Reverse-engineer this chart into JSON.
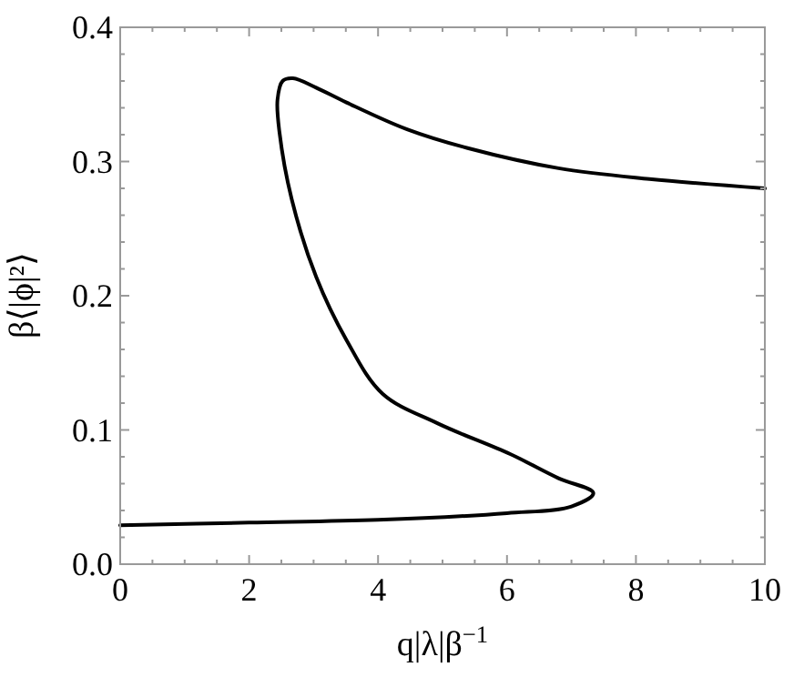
{
  "chart_data": {
    "type": "line",
    "xlabel": "q|λ|β$^{−1}$",
    "ylabel": "β⟨|ϕ|²⟩",
    "xlim": [
      0,
      10
    ],
    "ylim": [
      0,
      0.4
    ],
    "xticks": [
      0,
      {
        "value": 0.5,
        "label": null
      },
      {
        "value": 1,
        "label": null
      },
      {
        "value": 1.5,
        "label": null
      },
      2,
      {
        "value": 2.5,
        "label": null
      },
      {
        "value": 3,
        "label": null
      },
      {
        "value": 3.5,
        "label": null
      },
      4,
      {
        "value": 4.5,
        "label": null
      },
      {
        "value": 5,
        "label": null
      },
      {
        "value": 5.5,
        "label": null
      },
      6,
      {
        "value": 6.5,
        "label": null
      },
      {
        "value": 7,
        "label": null
      },
      {
        "value": 7.5,
        "label": null
      },
      8,
      {
        "value": 8.5,
        "label": null
      },
      {
        "value": 9,
        "label": null
      },
      {
        "value": 9.5,
        "label": null
      },
      10
    ],
    "yticks": [
      {
        "value": 0,
        "label": "0.0"
      },
      {
        "value": 0.02,
        "label": null
      },
      {
        "value": 0.04,
        "label": null
      },
      {
        "value": 0.06,
        "label": null
      },
      {
        "value": 0.08,
        "label": null
      },
      {
        "value": 0.1,
        "label": "0.1"
      },
      {
        "value": 0.12,
        "label": null
      },
      {
        "value": 0.14,
        "label": null
      },
      {
        "value": 0.16,
        "label": null
      },
      {
        "value": 0.18,
        "label": null
      },
      {
        "value": 0.2,
        "label": "0.2"
      },
      {
        "value": 0.22,
        "label": null
      },
      {
        "value": 0.24,
        "label": null
      },
      {
        "value": 0.26,
        "label": null
      },
      {
        "value": 0.28,
        "label": null
      },
      {
        "value": 0.3,
        "label": "0.3"
      },
      {
        "value": 0.32,
        "label": null
      },
      {
        "value": 0.34,
        "label": null
      },
      {
        "value": 0.36,
        "label": null
      },
      {
        "value": 0.38,
        "label": null
      },
      {
        "value": 0.4,
        "label": "0.4"
      }
    ],
    "grid": false,
    "marker": "none",
    "line_style": "solid",
    "series": [
      {
        "color": "#000000",
        "x": [
          0,
          2,
          4,
          6,
          7,
          7.34,
          6.8,
          6.05,
          4.92,
          4.07,
          3.51,
          3.04,
          2.66,
          2.47,
          2.44,
          2.52,
          2.68,
          3.04,
          3.51,
          4.45,
          5.39,
          6.8,
          8.21,
          10
        ],
        "values": [
          0.029,
          0.031,
          0.033,
          0.038,
          0.043,
          0.053,
          0.064,
          0.082,
          0.105,
          0.127,
          0.167,
          0.214,
          0.272,
          0.322,
          0.346,
          0.36,
          0.362,
          0.355,
          0.344,
          0.324,
          0.31,
          0.295,
          0.287,
          0.28
        ]
      }
    ]
  }
}
